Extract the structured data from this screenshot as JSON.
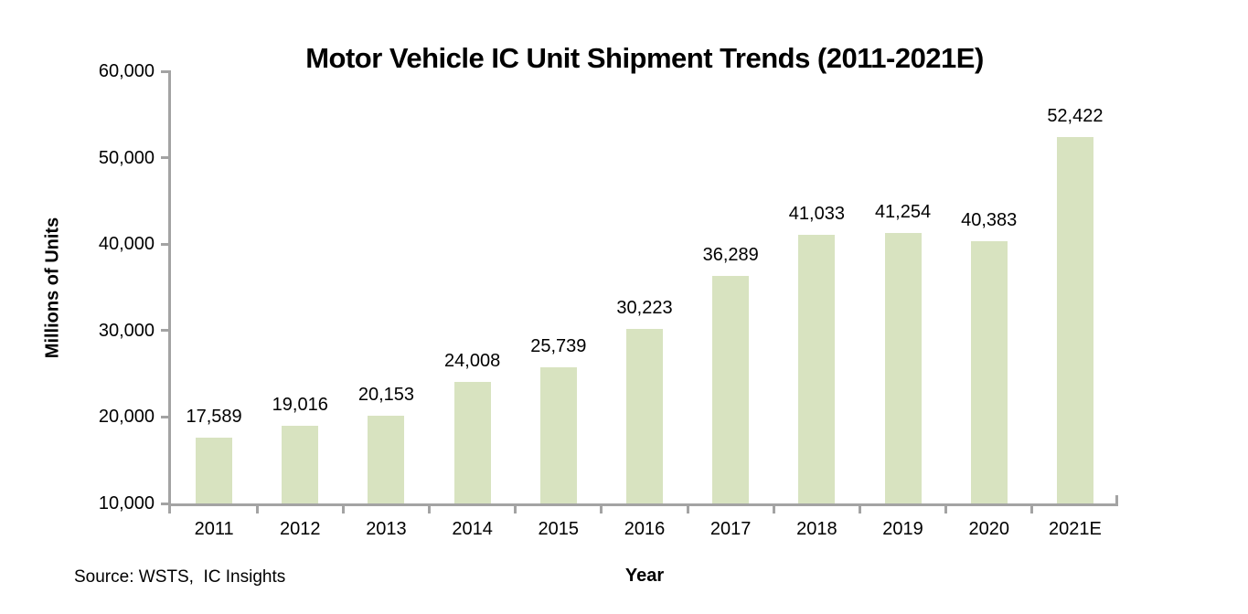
{
  "page": {
    "background": "#ffffff"
  },
  "colors": {
    "bar_fill": "#d8e3c0",
    "axis": "#a3a3a3",
    "text": "#000000"
  },
  "chart_data": {
    "type": "bar",
    "title": "Motor Vehicle IC Unit Shipment Trends (2011-2021E)",
    "xlabel": "Year",
    "ylabel": "Millions of Units",
    "source": "Source: WSTS,  IC Insights",
    "categories": [
      "2011",
      "2012",
      "2013",
      "2014",
      "2015",
      "2016",
      "2017",
      "2018",
      "2019",
      "2020",
      "2021E"
    ],
    "values": [
      17589,
      19016,
      20153,
      24008,
      25739,
      30223,
      36289,
      41033,
      41254,
      40383,
      52422
    ],
    "value_labels": [
      "17,589",
      "19,016",
      "20,153",
      "24,008",
      "25,739",
      "30,223",
      "36,289",
      "41,033",
      "41,254",
      "40,383",
      "52,422"
    ],
    "ylim": [
      10000,
      60000
    ],
    "ytick_interval": 10000,
    "ytick_labels": [
      "10,000",
      "20,000",
      "30,000",
      "40,000",
      "50,000",
      "60,000"
    ],
    "grid": false,
    "legend": "none"
  }
}
